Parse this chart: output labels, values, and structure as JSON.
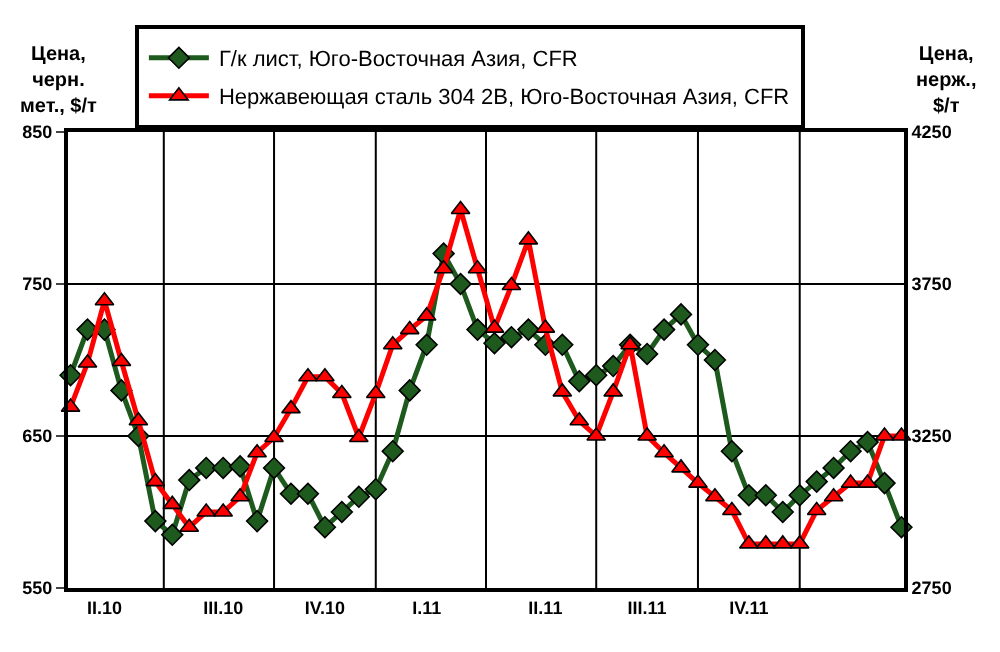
{
  "chart_data": {
    "type": "line",
    "ylabel": "Цена,\nчерн.\nмет., $/т",
    "y2label": "Цена,\nнерж.,\n$/т",
    "categories": [
      null,
      null,
      "II.10",
      null,
      null,
      null,
      null,
      null,
      null,
      "III.10",
      null,
      null,
      null,
      null,
      null,
      "IV.10",
      null,
      null,
      null,
      null,
      null,
      "I.11",
      null,
      null,
      null,
      null,
      null,
      null,
      "II.11",
      null,
      null,
      null,
      null,
      null,
      "III.11",
      null,
      null,
      null,
      null,
      null,
      "IV.11",
      null,
      null,
      null,
      null,
      null,
      null,
      null,
      null,
      null
    ],
    "series": [
      {
        "name": "Г/к лист, Юго-Восточная Азия, CFR",
        "color": "#1e5a1e",
        "marker": "diamond",
        "values": [
          690,
          720,
          720,
          680,
          650,
          594,
          585,
          621,
          629,
          629,
          630,
          594,
          629,
          612,
          612,
          590,
          600,
          610,
          615,
          640,
          680,
          710,
          770,
          750,
          720,
          711,
          715,
          720,
          710,
          710,
          686,
          690,
          696,
          710,
          704,
          720,
          730,
          710,
          700,
          640,
          611,
          611,
          600,
          611,
          620,
          629,
          640,
          646,
          619,
          590
        ]
      },
      {
        "name": "Нержавеющая сталь 304 2В, Юго-Восточная Азия, CFR",
        "color": "#ff0000",
        "marker": "triangle",
        "axis": "y2",
        "values": [
          3345,
          3490,
          3695,
          3495,
          3300,
          3100,
          3025,
          2950,
          3000,
          3000,
          3050,
          3195,
          3245,
          3340,
          3445,
          3445,
          3390,
          3245,
          3390,
          3550,
          3600,
          3645,
          3800,
          3995,
          3800,
          3605,
          3745,
          3895,
          3605,
          3395,
          3300,
          3250,
          3395,
          3550,
          3250,
          3195,
          3145,
          3095,
          3050,
          3005,
          2895,
          2895,
          2895,
          2895,
          3005,
          3050,
          3095,
          3095,
          3250,
          3250
        ]
      }
    ],
    "ylim": [
      550,
      850
    ],
    "yticks": [
      550,
      650,
      750,
      850
    ],
    "y2lim": [
      2750,
      4250
    ],
    "y2ticks": [
      2750,
      3250,
      3750,
      4250
    ],
    "grid": true,
    "legend": "top",
    "line_style": "solid"
  }
}
